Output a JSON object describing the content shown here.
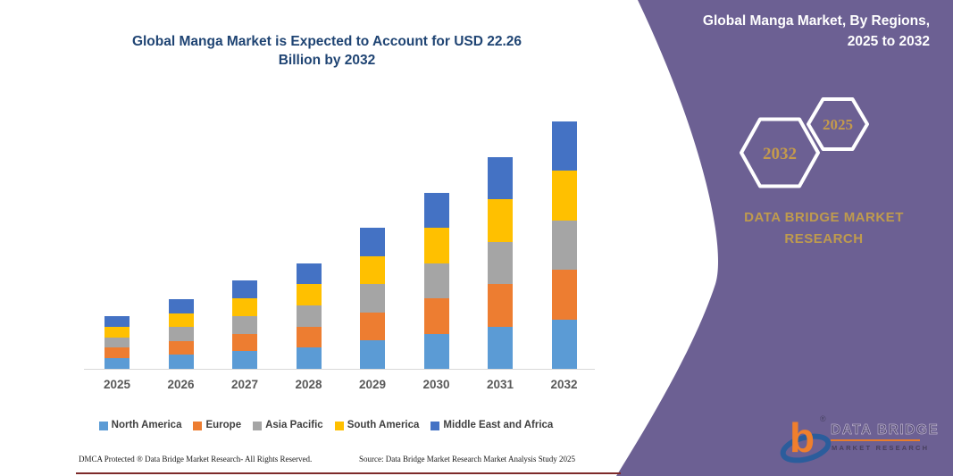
{
  "left": {
    "title_line1": "Global Manga Market is Expected to Account for USD 22.26",
    "title_line2": "Billion by 2032",
    "footer_dmca": "DMCA Protected ® Data Bridge Market Research-  All Rights Reserved.",
    "footer_source": "Source: Data Bridge Market Research  Market Analysis Study 2025"
  },
  "chart_data": {
    "type": "bar",
    "stacked": true,
    "title": "Global Manga Market is Expected to Account for USD 22.26 Billion by 2032",
    "unit": "USD Billion",
    "categories": [
      "2025",
      "2026",
      "2027",
      "2028",
      "2029",
      "2030",
      "2031",
      "2032"
    ],
    "series": [
      {
        "name": "North America",
        "color": "#5b9bd5",
        "values": [
          0.95,
          1.25,
          1.58,
          1.9,
          2.54,
          3.17,
          3.81,
          4.45
        ]
      },
      {
        "name": "Europe",
        "color": "#ed7d31",
        "values": [
          0.95,
          1.25,
          1.58,
          1.9,
          2.54,
          3.17,
          3.81,
          4.45
        ]
      },
      {
        "name": "Asia Pacific",
        "color": "#a5a5a5",
        "values": [
          0.95,
          1.25,
          1.59,
          1.9,
          2.54,
          3.17,
          3.81,
          4.45
        ]
      },
      {
        "name": "South America",
        "color": "#ffc000",
        "values": [
          0.95,
          1.26,
          1.59,
          1.9,
          2.54,
          3.16,
          3.81,
          4.45
        ]
      },
      {
        "name": "Middle East and Africa",
        "color": "#4472c4",
        "values": [
          0.94,
          1.26,
          1.58,
          1.89,
          2.54,
          3.16,
          3.81,
          4.46
        ]
      }
    ],
    "totals": [
      4.74,
      6.27,
      7.92,
      9.49,
      12.7,
      15.83,
      19.05,
      22.26
    ],
    "ylim": [
      0,
      22.26
    ],
    "grid": false,
    "legend_position": "bottom",
    "x_axis_labels_color": "#595959"
  },
  "panel": {
    "heading_line1": "Global Manga Market, By Regions,",
    "heading_line2": "2025 to 2032",
    "hex_large_label": "2032",
    "hex_small_label": "2025",
    "brand_line1": "DATA BRIDGE MARKET",
    "brand_line2": "RESEARCH",
    "colors": {
      "panel": "#6c6093",
      "gold": "#bf9b4e",
      "hex_stroke": "#ffffff"
    }
  },
  "logo": {
    "letter": "b",
    "registered": "®",
    "text_top": "DATA BRIDGE",
    "text_bottom": "MARKET RESEARCH"
  }
}
